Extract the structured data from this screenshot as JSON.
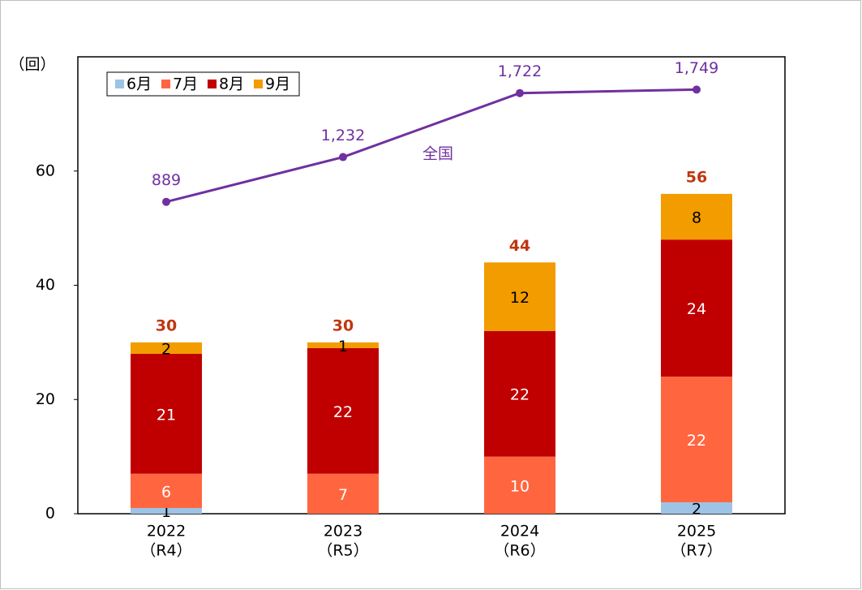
{
  "chart_data": {
    "type": "stacked-bar-line",
    "y_label": "（回）",
    "categories": [
      "2022",
      "2023",
      "2024",
      "2025"
    ],
    "category_sublabels": [
      "（R4）",
      "（R5）",
      "（R6）",
      "（R7）"
    ],
    "series": [
      {
        "name": "6月",
        "color": "#9dc3e6",
        "label_color": "#000000",
        "values": [
          1,
          null,
          null,
          2
        ]
      },
      {
        "name": "7月",
        "color": "#ff6640",
        "label_color": "#ffffff",
        "values": [
          6,
          7,
          10,
          22
        ]
      },
      {
        "name": "8月",
        "color": "#c00000",
        "label_color": "#ffffff",
        "values": [
          21,
          22,
          22,
          24
        ]
      },
      {
        "name": "9月",
        "color": "#f29c00",
        "label_color": "#000000",
        "values": [
          2,
          1,
          12,
          8
        ]
      }
    ],
    "totals": [
      30,
      30,
      44,
      56
    ],
    "totals_color": "#c0360e",
    "line": {
      "name": "全国",
      "color": "#7030a0",
      "axis": "y2",
      "values": [
        889,
        1232,
        1722,
        1749
      ],
      "value_labels": [
        "889",
        "1,232",
        "1,722",
        "1,749"
      ]
    },
    "ylim": [
      0,
      80
    ],
    "yticks": [
      0,
      20,
      40,
      60
    ],
    "y2lim": [
      -1500,
      2000
    ],
    "legend": "top-left",
    "grid": false
  }
}
